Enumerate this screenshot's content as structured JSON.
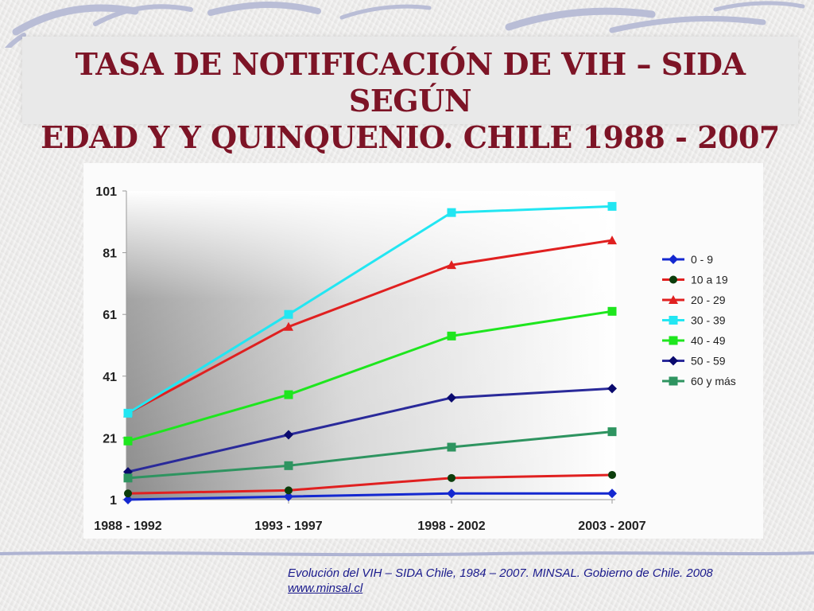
{
  "title_line1": "TASA DE NOTIFICACIÓN DE VIH – SIDA SEGÚN",
  "title_line2": "EDAD Y Y QUINQUENIO. CHILE 1988 - 2007",
  "source_text": "Evolución del VIH – SIDA Chile, 1984 – 2007. MINSAL. Gobierno de Chile. 2008",
  "source_link": "www.minsal.cl",
  "chart_data": {
    "type": "line",
    "title": "TASA DE NOTIFICACIÓN DE VIH – SIDA SEGÚN EDAD Y Y QUINQUENIO. CHILE 1988 - 2007",
    "xlabel": "",
    "ylabel": "",
    "categories": [
      "1988 - 1992",
      "1993 - 1997",
      "1998 - 2002",
      "2003 - 2007"
    ],
    "ylim": [
      1,
      101
    ],
    "yticks": [
      1,
      21,
      41,
      61,
      81,
      101
    ],
    "grid": false,
    "legend_position": "right",
    "series": [
      {
        "name": "0 - 9",
        "color": "#1428d0",
        "marker": "diamond",
        "values": [
          1,
          2,
          3,
          3
        ]
      },
      {
        "name": "10 a 19",
        "color": "#e02020",
        "marker_color": "#0b3d0b",
        "marker": "circle",
        "values": [
          3,
          4,
          8,
          9
        ]
      },
      {
        "name": "20 - 29",
        "color": "#e02020",
        "marker": "triangle",
        "values": [
          29,
          57,
          77,
          85
        ]
      },
      {
        "name": "30 - 39",
        "color": "#22e6f2",
        "marker": "square",
        "values": [
          29,
          61,
          94,
          96
        ]
      },
      {
        "name": "40 - 49",
        "color": "#1ee61e",
        "marker": "square",
        "values": [
          20,
          35,
          54,
          62
        ]
      },
      {
        "name": "50 - 59",
        "color": "#2a2a9a",
        "marker_color": "#0a0a6e",
        "marker": "diamond",
        "values": [
          10,
          22,
          34,
          37
        ]
      },
      {
        "name": "60 y más",
        "color": "#2e9460",
        "marker": "square",
        "values": [
          8,
          12,
          18,
          23
        ]
      }
    ]
  }
}
